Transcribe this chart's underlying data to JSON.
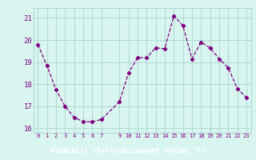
{
  "x": [
    0,
    1,
    2,
    3,
    4,
    5,
    6,
    7,
    9,
    10,
    11,
    12,
    13,
    14,
    15,
    16,
    17,
    18,
    19,
    20,
    21,
    22,
    23
  ],
  "y": [
    19.8,
    18.85,
    17.75,
    17.0,
    16.5,
    16.3,
    16.3,
    16.4,
    17.2,
    18.5,
    19.2,
    19.2,
    19.65,
    19.6,
    21.1,
    20.65,
    19.15,
    19.9,
    19.65,
    19.15,
    18.75,
    17.8,
    17.4
  ],
  "color": "#800080",
  "bg_color": "#d8f5f0",
  "grid_color": "#aed8d0",
  "xlabel": "Windchill (Refroidissement éolien,°C)",
  "xlabel_bar_color": "#885599",
  "ylim": [
    15.8,
    21.45
  ],
  "yticks": [
    16,
    17,
    18,
    19,
    20,
    21
  ],
  "xticks": [
    0,
    1,
    2,
    3,
    4,
    5,
    6,
    7,
    9,
    10,
    11,
    12,
    13,
    14,
    15,
    16,
    17,
    18,
    19,
    20,
    21,
    22,
    23
  ],
  "marker": "D",
  "markersize": 2.2,
  "linewidth": 0.9,
  "linestyle": "--"
}
